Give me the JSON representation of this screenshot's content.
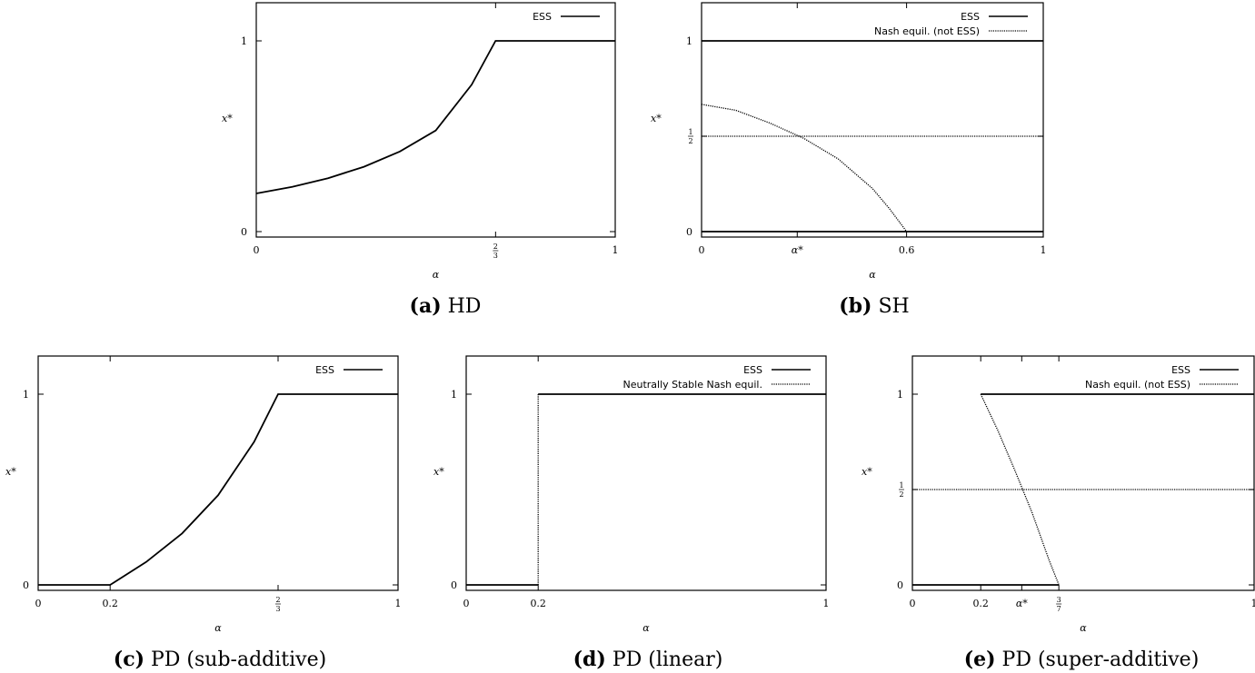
{
  "chart_data": [
    {
      "type": "line",
      "caption_letter": "(a)",
      "caption_text": " HD",
      "xlabel": "α",
      "ylabel": "x*",
      "xlim": [
        0,
        1
      ],
      "ylim": [
        0,
        1
      ],
      "xticks": [
        {
          "v": 0,
          "t": "0"
        },
        {
          "v": 0.6667,
          "t": "",
          "num": "2",
          "den": "3"
        },
        {
          "v": 1,
          "t": "1"
        }
      ],
      "yticks": [
        {
          "v": 0,
          "t": "0"
        },
        {
          "v": 1,
          "t": "1"
        }
      ],
      "legend_position": "top-right",
      "series": [
        {
          "name": "ESS",
          "style": "solid",
          "x": [
            0,
            0.1,
            0.2,
            0.3,
            0.4,
            0.5,
            0.6,
            0.6667,
            0.8,
            1.0
          ],
          "y": [
            0.2,
            0.235,
            0.28,
            0.34,
            0.42,
            0.53,
            0.77,
            1.0,
            1.0,
            1.0
          ]
        }
      ]
    },
    {
      "type": "line",
      "caption_letter": "(b)",
      "caption_text": " SH",
      "xlabel": "α",
      "ylabel": "x*",
      "xlim": [
        0,
        1
      ],
      "ylim": [
        0,
        1
      ],
      "xticks": [
        {
          "v": 0,
          "t": "0"
        },
        {
          "v": 0.28,
          "t": "α*"
        },
        {
          "v": 0.6,
          "t": "0.6"
        },
        {
          "v": 1,
          "t": "1"
        }
      ],
      "yticks": [
        {
          "v": 0,
          "t": "0"
        },
        {
          "v": 0.5,
          "t": "",
          "num": "1",
          "den": "2"
        },
        {
          "v": 1,
          "t": "1"
        }
      ],
      "legend_position": "top-right",
      "series": [
        {
          "name": "ESS",
          "style": "solid",
          "x": [
            0,
            1
          ],
          "y": [
            1,
            1
          ]
        },
        {
          "name": "",
          "style": "solid",
          "x": [
            0,
            1
          ],
          "y": [
            0,
            0
          ]
        },
        {
          "name": "Nash equil. (not ESS)",
          "style": "dotted",
          "x": [
            0,
            1
          ],
          "y": [
            0.5,
            0.5
          ]
        },
        {
          "name": "",
          "style": "dotted",
          "x": [
            0,
            0.1,
            0.2,
            0.3,
            0.4,
            0.5,
            0.55,
            0.6
          ],
          "y": [
            0.667,
            0.636,
            0.569,
            0.488,
            0.381,
            0.226,
            0.12,
            0.0
          ]
        }
      ]
    },
    {
      "type": "line",
      "caption_letter": "(c)",
      "caption_text": " PD (sub-additive)",
      "xlabel": "α",
      "ylabel": "x*",
      "xlim": [
        0,
        1
      ],
      "ylim": [
        0,
        1
      ],
      "xticks": [
        {
          "v": 0,
          "t": "0"
        },
        {
          "v": 0.2,
          "t": "0.2"
        },
        {
          "v": 0.6667,
          "t": "",
          "num": "2",
          "den": "3"
        },
        {
          "v": 1,
          "t": "1"
        }
      ],
      "yticks": [
        {
          "v": 0,
          "t": "0"
        },
        {
          "v": 1,
          "t": "1"
        }
      ],
      "legend_position": "top-right",
      "series": [
        {
          "name": "ESS",
          "style": "solid",
          "x": [
            0,
            0.2,
            0.3,
            0.4,
            0.5,
            0.6,
            0.6667,
            0.8,
            1.0
          ],
          "y": [
            0,
            0,
            0.12,
            0.27,
            0.47,
            0.75,
            1.0,
            1.0,
            1.0
          ]
        }
      ]
    },
    {
      "type": "line",
      "caption_letter": "(d)",
      "caption_text": " PD (linear)",
      "xlabel": "α",
      "ylabel": "x*",
      "xlim": [
        0,
        1
      ],
      "ylim": [
        0,
        1
      ],
      "xticks": [
        {
          "v": 0,
          "t": "0"
        },
        {
          "v": 0.2,
          "t": "0.2"
        },
        {
          "v": 1,
          "t": "1"
        }
      ],
      "yticks": [
        {
          "v": 0,
          "t": "0"
        },
        {
          "v": 1,
          "t": "1"
        }
      ],
      "legend_position": "top-right",
      "series": [
        {
          "name": "ESS",
          "style": "solid",
          "x": [
            0,
            0.2
          ],
          "y": [
            0,
            0
          ]
        },
        {
          "name": "",
          "style": "solid",
          "x": [
            0.2,
            1
          ],
          "y": [
            1,
            1
          ]
        },
        {
          "name": "Neutrally Stable Nash equil.",
          "style": "dotted",
          "x": [
            0.2,
            0.2
          ],
          "y": [
            0,
            1
          ]
        }
      ]
    },
    {
      "type": "line",
      "caption_letter": "(e)",
      "caption_text": " PD (super-additive)",
      "xlabel": "α",
      "ylabel": "x*",
      "xlim": [
        0,
        1
      ],
      "ylim": [
        0,
        1
      ],
      "xticks": [
        {
          "v": 0,
          "t": "0"
        },
        {
          "v": 0.2,
          "t": "0.2"
        },
        {
          "v": 0.32,
          "t": "α*"
        },
        {
          "v": 0.4286,
          "t": "",
          "num": "3",
          "den": "7"
        },
        {
          "v": 1,
          "t": "1"
        }
      ],
      "yticks": [
        {
          "v": 0,
          "t": "0"
        },
        {
          "v": 0.5,
          "t": "",
          "num": "1",
          "den": "2"
        },
        {
          "v": 1,
          "t": "1"
        }
      ],
      "legend_position": "top-right",
      "series": [
        {
          "name": "ESS",
          "style": "solid",
          "x": [
            0.2,
            1
          ],
          "y": [
            1,
            1
          ]
        },
        {
          "name": "",
          "style": "solid",
          "x": [
            0,
            0.4286
          ],
          "y": [
            0,
            0
          ]
        },
        {
          "name": "Nash equil. (not ESS)",
          "style": "dotted",
          "x": [
            0,
            1
          ],
          "y": [
            0.5,
            0.5
          ]
        },
        {
          "name": "",
          "style": "dotted",
          "x": [
            0.2,
            0.25,
            0.3,
            0.35,
            0.4,
            0.4286
          ],
          "y": [
            1.0,
            0.81,
            0.6,
            0.38,
            0.13,
            0.0
          ]
        }
      ]
    }
  ]
}
